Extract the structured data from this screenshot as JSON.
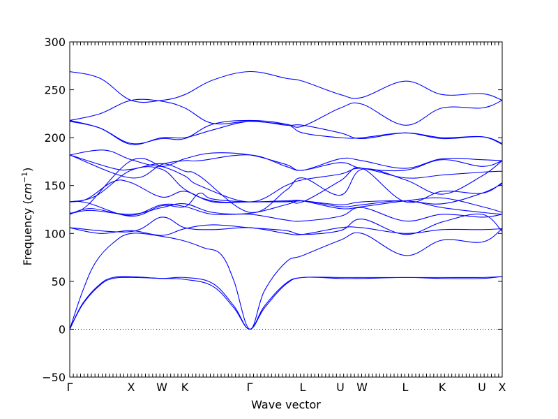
{
  "chart_data": {
    "type": "line",
    "title": "",
    "xlabel": "Wave vector",
    "ylabel_text": "Frequency (",
    "ylabel_unit": "cm",
    "ylabel_exponent": "−1",
    "ylabel_close": ")",
    "ylim": [
      -50,
      300
    ],
    "yticks": [
      -50,
      0,
      50,
      100,
      150,
      200,
      250,
      300
    ],
    "ytick_labels": [
      "−50",
      "0",
      "50",
      "100",
      "150",
      "200",
      "250",
      "300"
    ],
    "grid": false,
    "zero_line": true,
    "high_symmetry_points": [
      {
        "label": "Γ",
        "x": 0.0
      },
      {
        "label": "X",
        "x": 0.1419
      },
      {
        "label": "W",
        "x": 0.2129
      },
      {
        "label": "K",
        "x": 0.2661
      },
      {
        "label": "Γ",
        "x": 0.4161
      },
      {
        "label": "L",
        "x": 0.5387
      },
      {
        "label": "U",
        "x": 0.6258
      },
      {
        "label": "W",
        "x": 0.6758
      },
      {
        "label": "L",
        "x": 0.7758
      },
      {
        "label": "K",
        "x": 0.8613
      },
      {
        "label": "U",
        "x": 0.9532
      },
      {
        "label": "X",
        "x": 1.0
      }
    ],
    "series": [
      {
        "color": "#0000ff",
        "x": [
          0,
          0.03,
          0.07,
          0.1,
          0.1419,
          0.2129,
          0.2661,
          0.33,
          0.38,
          0.4161,
          0.45,
          0.5,
          0.5387,
          0.6258,
          0.6758,
          0.7758,
          0.8613,
          0.9532,
          1.0
        ],
        "y": [
          0,
          26,
          46,
          53,
          54,
          53,
          52,
          45,
          22,
          0,
          22,
          47,
          54,
          53,
          53,
          54,
          53,
          53,
          55
        ]
      },
      {
        "color": "#0000ff",
        "x": [
          0,
          0.03,
          0.07,
          0.1,
          0.1419,
          0.2129,
          0.2661,
          0.33,
          0.38,
          0.4161,
          0.45,
          0.5,
          0.5387,
          0.6258,
          0.6758,
          0.7758,
          0.8613,
          0.9532,
          1.0
        ],
        "y": [
          0,
          27,
          47,
          54,
          55,
          53,
          54,
          48,
          24,
          0,
          24,
          48,
          54,
          54,
          54,
          54,
          54,
          54,
          55
        ]
      },
      {
        "color": "#0000ff",
        "x": [
          0,
          0.03,
          0.06,
          0.1,
          0.1419,
          0.2129,
          0.2661,
          0.31,
          0.35,
          0.38,
          0.4161,
          0.45,
          0.5,
          0.5387,
          0.6258,
          0.6758,
          0.7758,
          0.8613,
          0.9532,
          1.0
        ],
        "y": [
          0,
          40,
          70,
          90,
          100,
          97,
          92,
          85,
          78,
          50,
          0,
          40,
          70,
          77,
          93,
          100,
          77,
          93,
          91,
          105
        ]
      },
      {
        "color": "#0000ff",
        "x": [
          0,
          0.1419,
          0.2129,
          0.2661,
          0.33,
          0.4161,
          0.5,
          0.5387,
          0.6258,
          0.6758,
          0.7758,
          0.8613,
          0.9532,
          1.0
        ],
        "y": [
          106,
          102,
          117,
          106,
          104,
          106,
          100,
          99,
          106,
          106,
          100,
          104,
          104,
          105
        ]
      },
      {
        "color": "#0000ff",
        "x": [
          0,
          0.07,
          0.1419,
          0.2129,
          0.2661,
          0.33,
          0.4161,
          0.5,
          0.5387,
          0.6258,
          0.6758,
          0.7758,
          0.8613,
          0.9532,
          1.0
        ],
        "y": [
          106,
          100,
          103,
          98,
          105,
          109,
          106,
          103,
          99,
          103,
          115,
          99,
          112,
          120,
          102
        ]
      },
      {
        "color": "#0000ff",
        "x": [
          0,
          0.05,
          0.1419,
          0.2129,
          0.2661,
          0.33,
          0.4161,
          0.5,
          0.5387,
          0.6258,
          0.6758,
          0.7758,
          0.8613,
          0.9532,
          1.0
        ],
        "y": [
          120,
          126,
          119,
          130,
          128,
          120,
          120,
          114,
          113,
          118,
          127,
          113,
          120,
          117,
          120
        ]
      },
      {
        "color": "#0000ff",
        "x": [
          0,
          0.05,
          0.1419,
          0.2129,
          0.2661,
          0.33,
          0.4161,
          0.5,
          0.5387,
          0.6258,
          0.6758,
          0.7758,
          0.8613,
          0.9532,
          1.0
        ],
        "y": [
          121,
          124,
          120,
          127,
          131,
          122,
          121,
          130,
          134,
          128,
          130,
          134,
          127,
          122,
          120
        ]
      },
      {
        "color": "#0000ff",
        "x": [
          0,
          0.04,
          0.1419,
          0.2129,
          0.2661,
          0.3,
          0.33,
          0.4161,
          0.5,
          0.5387,
          0.6258,
          0.6758,
          0.7758,
          0.8613,
          0.9532,
          1.0
        ],
        "y": [
          133,
          132,
          118,
          129,
          128,
          142,
          136,
          133,
          134,
          134,
          126,
          128,
          134,
          137,
          128,
          122
        ]
      },
      {
        "color": "#0000ff",
        "x": [
          0,
          0.04,
          0.1,
          0.1419,
          0.2129,
          0.2661,
          0.33,
          0.4161,
          0.5,
          0.5387,
          0.6258,
          0.6758,
          0.7758,
          0.8613,
          0.9532,
          1.0
        ],
        "y": [
          133,
          136,
          154,
          153,
          138,
          144,
          133,
          133,
          133,
          134,
          130,
          133,
          134,
          131,
          142,
          152
        ]
      },
      {
        "color": "#0000ff",
        "x": [
          0,
          0.06,
          0.1419,
          0.2129,
          0.2661,
          0.33,
          0.4161,
          0.5,
          0.5387,
          0.6258,
          0.6758,
          0.7758,
          0.8613,
          0.9532,
          1.0
        ],
        "y": [
          133,
          139,
          166,
          167,
          146,
          134,
          133,
          134,
          133,
          155,
          168,
          133,
          144,
          142,
          153
        ]
      },
      {
        "color": "#0000ff",
        "x": [
          0,
          0.04,
          0.1419,
          0.2129,
          0.2661,
          0.3,
          0.4161,
          0.5,
          0.5387,
          0.6258,
          0.6758,
          0.7758,
          0.8613,
          0.9532,
          1.0
        ],
        "y": [
          121,
          129,
          176,
          170,
          160,
          150,
          133,
          150,
          156,
          162,
          168,
          158,
          161,
          164,
          165
        ]
      },
      {
        "color": "#0000ff",
        "x": [
          0,
          0.1,
          0.1419,
          0.2129,
          0.2661,
          0.3,
          0.4161,
          0.5,
          0.5387,
          0.6258,
          0.6758,
          0.7758,
          0.8613,
          0.9532,
          1.0
        ],
        "y": [
          182,
          168,
          167,
          173,
          165,
          160,
          122,
          145,
          158,
          140,
          167,
          156,
          141,
          160,
          176
        ]
      },
      {
        "color": "#0000ff",
        "x": [
          0,
          0.1419,
          0.2129,
          0.2661,
          0.3,
          0.4161,
          0.5,
          0.5387,
          0.6258,
          0.6758,
          0.7758,
          0.8613,
          0.9532,
          1.0
        ],
        "y": [
          182,
          158,
          172,
          176,
          176,
          182,
          170,
          166,
          174,
          168,
          166,
          177,
          170,
          176
        ]
      },
      {
        "color": "#0000ff",
        "x": [
          0,
          0.08,
          0.1419,
          0.2129,
          0.2661,
          0.33,
          0.4161,
          0.5,
          0.5387,
          0.6258,
          0.6758,
          0.7758,
          0.8613,
          0.9532,
          1.0
        ],
        "y": [
          182,
          187,
          177,
          170,
          178,
          184,
          182,
          172,
          166,
          178,
          176,
          168,
          178,
          177,
          176
        ]
      },
      {
        "color": "#0000ff",
        "x": [
          0,
          0.07,
          0.1419,
          0.2129,
          0.2661,
          0.33,
          0.4161,
          0.5,
          0.5387,
          0.6258,
          0.6758,
          0.7758,
          0.8613,
          0.9532,
          1.0
        ],
        "y": [
          217,
          210,
          193,
          200,
          200,
          208,
          217,
          213,
          213,
          205,
          199,
          205,
          200,
          201,
          193
        ]
      },
      {
        "color": "#0000ff",
        "x": [
          0,
          0.07,
          0.1419,
          0.2129,
          0.2661,
          0.33,
          0.4161,
          0.5,
          0.5387,
          0.6258,
          0.6758,
          0.7758,
          0.8613,
          0.9532,
          1.0
        ],
        "y": [
          218,
          210,
          194,
          199,
          199,
          214,
          218,
          214,
          205,
          200,
          200,
          205,
          199,
          201,
          194
        ]
      },
      {
        "color": "#0000ff",
        "x": [
          0,
          0.07,
          0.1419,
          0.2129,
          0.2661,
          0.33,
          0.4161,
          0.5,
          0.5387,
          0.6258,
          0.6758,
          0.7758,
          0.8613,
          0.9532,
          1.0
        ],
        "y": [
          218,
          225,
          239,
          238,
          231,
          215,
          217,
          214,
          212,
          231,
          235,
          213,
          231,
          231,
          239
        ]
      },
      {
        "color": "#0000ff",
        "x": [
          0,
          0.07,
          0.1419,
          0.2129,
          0.2661,
          0.33,
          0.4161,
          0.5,
          0.5387,
          0.6258,
          0.6758,
          0.7758,
          0.8613,
          0.9532,
          1.0
        ],
        "y": [
          269,
          262,
          239,
          239,
          245,
          260,
          269,
          262,
          259,
          245,
          242,
          259,
          245,
          246,
          239
        ]
      }
    ]
  }
}
